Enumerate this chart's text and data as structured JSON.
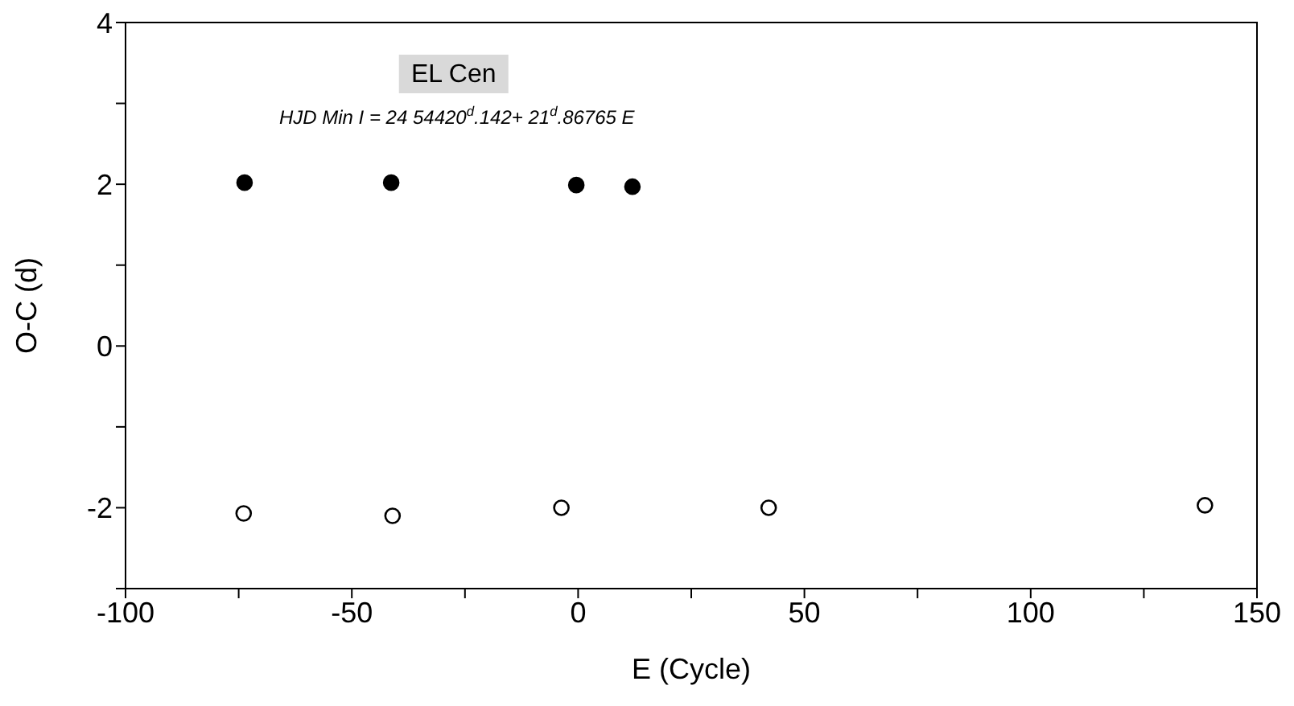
{
  "chart_data": {
    "type": "scatter",
    "xlabel": "E (Cycle)",
    "ylabel": "O-C (d)",
    "annotations": [
      "EL Cen",
      "HJD Min I = 24 54420$^{d}$.142+ 21$^{d}$.86765 E"
    ],
    "xlim": [
      -100,
      150
    ],
    "xticks": [
      -100,
      {
        "value": -75,
        "label": null
      },
      -50,
      {
        "value": -25,
        "label": null
      },
      0,
      {
        "value": 25,
        "label": null
      },
      50,
      {
        "value": 75,
        "label": null
      },
      100,
      {
        "value": 125,
        "label": null
      },
      150
    ],
    "ylim": [
      -3,
      4
    ],
    "yticks": [
      {
        "value": -3,
        "label": null
      },
      -2,
      {
        "value": -1,
        "label": null
      },
      0,
      {
        "value": 1,
        "label": null
      },
      2,
      {
        "value": 3,
        "label": null
      },
      4
    ],
    "legend": false,
    "marker": "circle",
    "series": [
      {
        "color": "#000000",
        "x": [
          -73.7,
          -41.3,
          -0.4,
          12.0
        ],
        "values": [
          2.02,
          2.02,
          1.99,
          1.97
        ]
      },
      {
        "color": "#000000",
        "x": [
          -73.9,
          -41.0,
          -3.7,
          42.1,
          138.5
        ],
        "values": [
          -2.07,
          -2.1,
          -2.0,
          -2.0,
          -1.97
        ]
      }
    ]
  }
}
